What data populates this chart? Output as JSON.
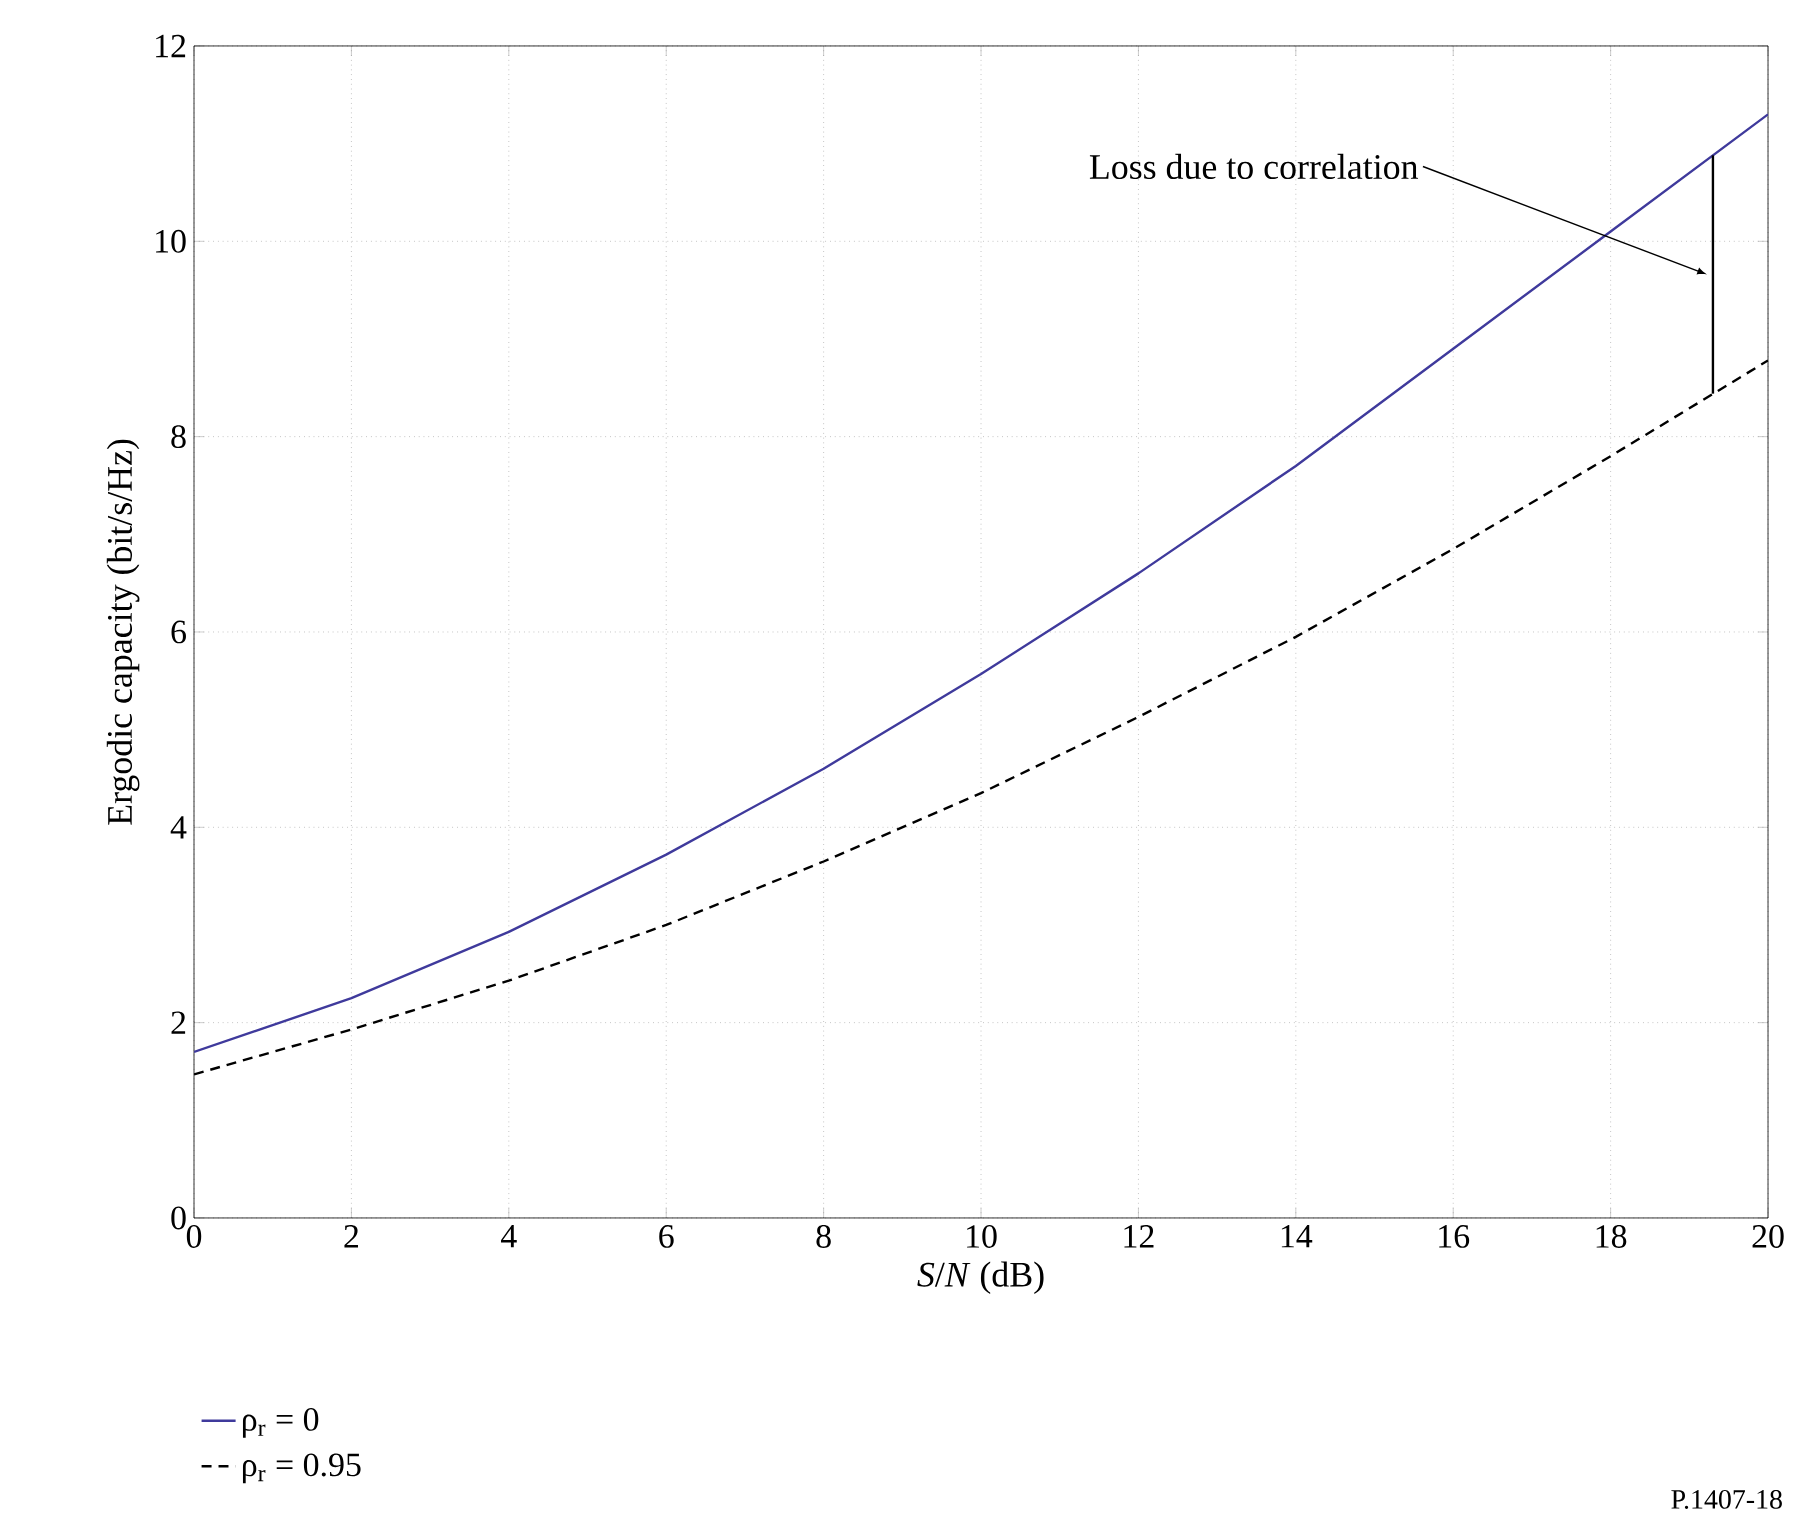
{
  "chart_data": {
    "type": "line",
    "xlabel": "*S*/*N* (dB)",
    "ylabel": "Ergodic capacity (bit/s/Hz)",
    "x": [
      0,
      2,
      4,
      6,
      8,
      10,
      12,
      14,
      16,
      18,
      20
    ],
    "series": [
      {
        "name": "ρ$_{r}$ = 0",
        "color": "#3f3a9c",
        "line_style": "solid",
        "values": [
          1.7,
          2.25,
          2.93,
          3.72,
          4.6,
          5.57,
          6.6,
          7.7,
          8.9,
          10.1,
          11.3
        ]
      },
      {
        "name": "ρ$_{r}$ = 0.95",
        "color": "#000000",
        "line_style": "dashed",
        "values": [
          1.47,
          1.93,
          2.43,
          3.0,
          3.65,
          4.35,
          5.13,
          5.95,
          6.85,
          7.8,
          8.78
        ]
      },
      {
        "color": "#000000",
        "line_style": "solid",
        "x": [
          19.3,
          19.3
        ],
        "values": [
          8.44,
          10.88
        ]
      }
    ],
    "xlim": [
      0,
      20
    ],
    "xticks": [
      0,
      2,
      4,
      6,
      8,
      10,
      12,
      14,
      16,
      18,
      20
    ],
    "ylim": [
      0,
      12
    ],
    "yticks": [
      0,
      2,
      4,
      6,
      8,
      10,
      12
    ],
    "grid": true,
    "legend": "bottom",
    "marker": "none",
    "annotations": [
      {
        "text": "Loss due to correlation",
        "x": 19.3,
        "y": 9.66
      },
      "P.1407-18"
    ]
  }
}
